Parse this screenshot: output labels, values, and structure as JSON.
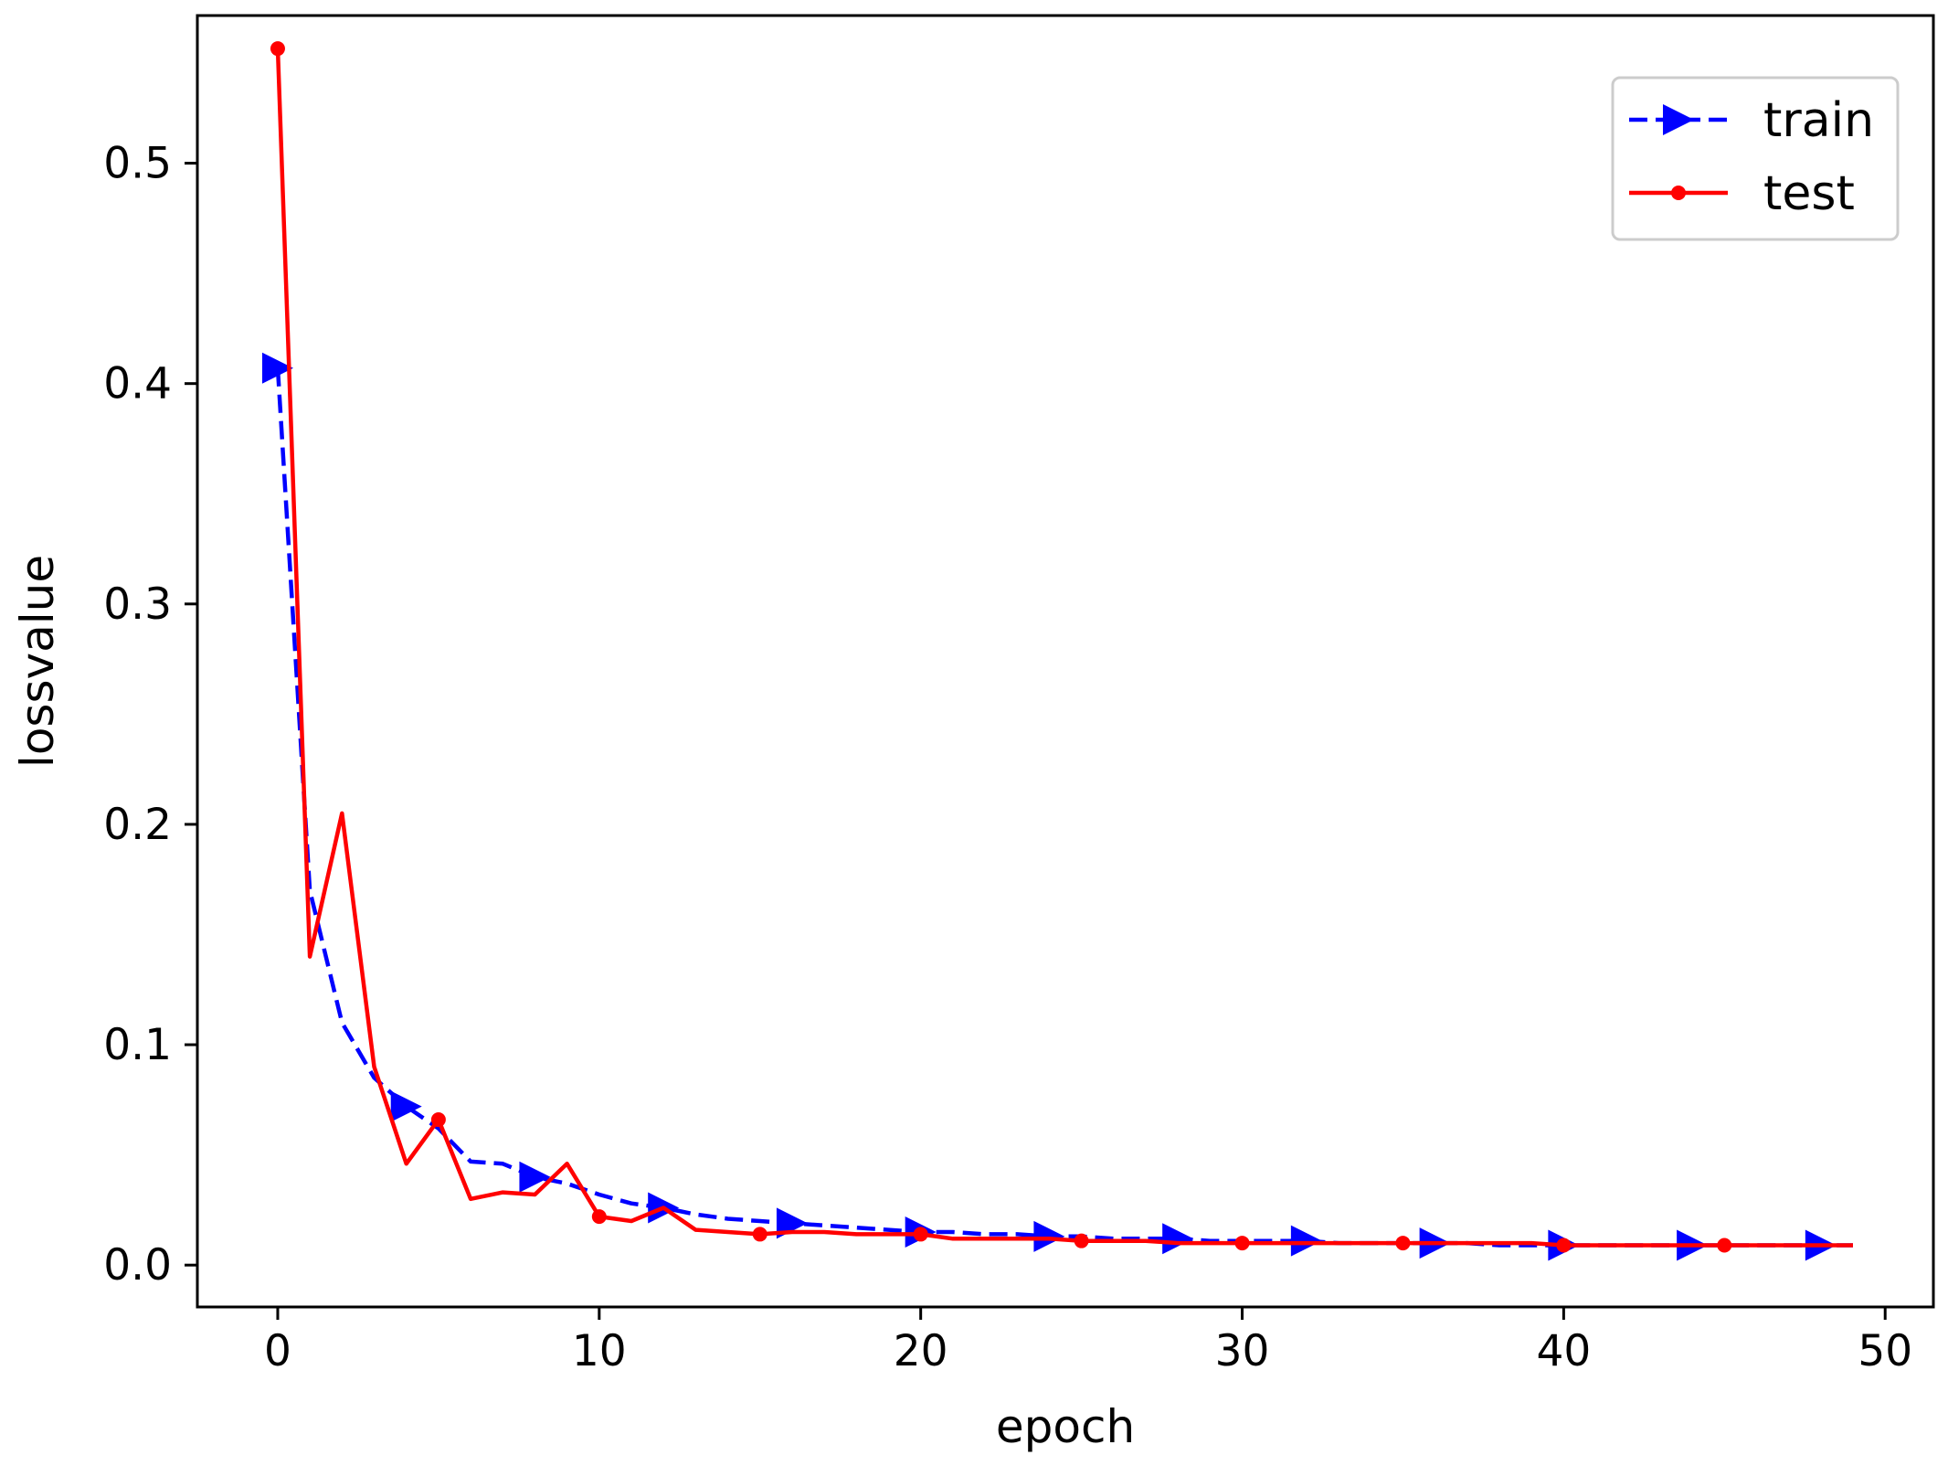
{
  "chart_data": {
    "type": "line",
    "title": "",
    "xlabel": "epoch",
    "ylabel": "lossvalue",
    "xlim": [
      -2.5,
      51.5
    ],
    "ylim": [
      -0.019,
      0.567
    ],
    "xticks": [
      0,
      10,
      20,
      30,
      40,
      50
    ],
    "xtick_labels": [
      "0",
      "10",
      "20",
      "30",
      "40",
      "50"
    ],
    "yticks": [
      0.0,
      0.1,
      0.2,
      0.3,
      0.4,
      0.5
    ],
    "ytick_labels": [
      "0.0",
      "0.1",
      "0.2",
      "0.3",
      "0.4",
      "0.5"
    ],
    "grid": false,
    "legend_position": "top-right",
    "x": [
      0,
      1,
      2,
      3,
      4,
      5,
      6,
      7,
      8,
      9,
      10,
      11,
      12,
      13,
      14,
      15,
      16,
      17,
      18,
      19,
      20,
      21,
      22,
      23,
      24,
      25,
      26,
      27,
      28,
      29,
      30,
      31,
      32,
      33,
      34,
      35,
      36,
      37,
      38,
      39,
      40,
      41,
      42,
      43,
      44,
      45,
      46,
      47,
      48,
      49
    ],
    "series": [
      {
        "name": "train",
        "color": "#0000ff",
        "line_style": "dashed",
        "marker": "triangle-right",
        "marker_every": 4,
        "values": [
          0.407,
          0.17,
          0.11,
          0.085,
          0.072,
          0.062,
          0.047,
          0.046,
          0.04,
          0.037,
          0.032,
          0.028,
          0.026,
          0.023,
          0.021,
          0.02,
          0.019,
          0.018,
          0.017,
          0.016,
          0.015,
          0.015,
          0.014,
          0.014,
          0.013,
          0.013,
          0.012,
          0.012,
          0.012,
          0.011,
          0.011,
          0.011,
          0.011,
          0.01,
          0.01,
          0.01,
          0.01,
          0.01,
          0.009,
          0.009,
          0.009,
          0.009,
          0.009,
          0.009,
          0.009,
          0.009,
          0.009,
          0.009,
          0.009,
          0.009
        ]
      },
      {
        "name": "test",
        "color": "#ff0000",
        "line_style": "solid",
        "marker": "circle",
        "marker_every": 5,
        "values": [
          0.552,
          0.14,
          0.205,
          0.09,
          0.046,
          0.066,
          0.03,
          0.033,
          0.032,
          0.046,
          0.022,
          0.02,
          0.026,
          0.016,
          0.015,
          0.014,
          0.015,
          0.015,
          0.014,
          0.014,
          0.014,
          0.012,
          0.012,
          0.012,
          0.012,
          0.011,
          0.011,
          0.011,
          0.01,
          0.01,
          0.01,
          0.01,
          0.01,
          0.01,
          0.01,
          0.01,
          0.01,
          0.01,
          0.01,
          0.01,
          0.009,
          0.009,
          0.009,
          0.009,
          0.009,
          0.009,
          0.009,
          0.009,
          0.009,
          0.009
        ]
      }
    ]
  }
}
